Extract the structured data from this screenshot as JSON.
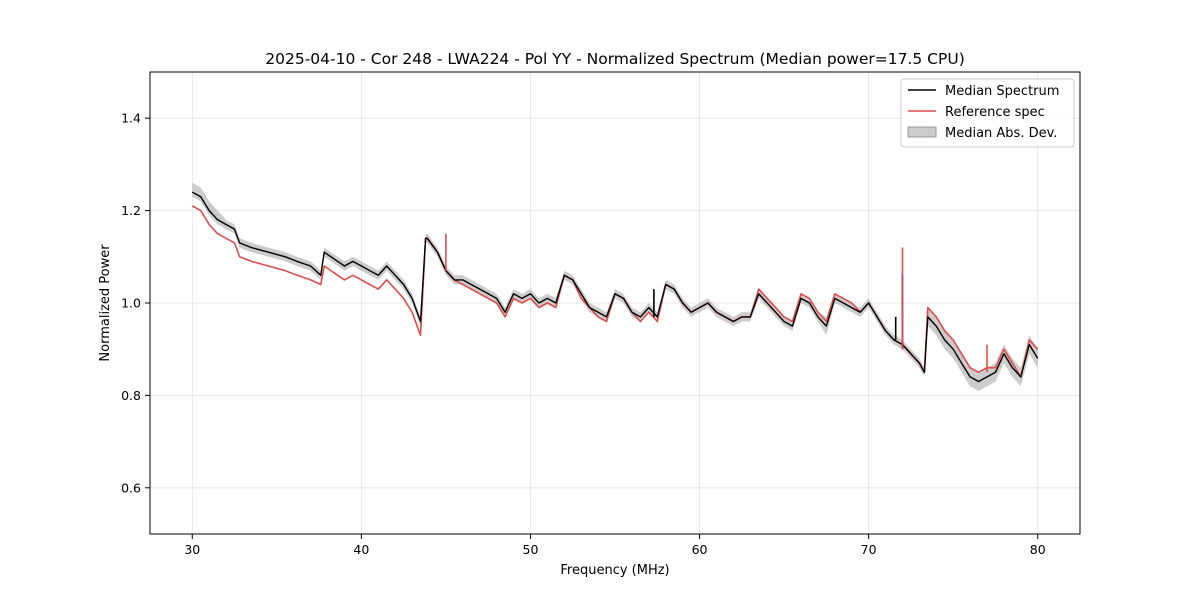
{
  "chart_data": {
    "type": "line",
    "title": "2025-04-10 - Cor 248 - LWA224 - Pol YY - Normalized Spectrum (Median power=17.5 CPU)",
    "xlabel": "Frequency (MHz)",
    "ylabel": "Normalized Power",
    "xlim": [
      27.5,
      82.5
    ],
    "ylim": [
      0.5,
      1.5
    ],
    "xticks": [
      30,
      40,
      50,
      60,
      70,
      80
    ],
    "yticks": [
      0.6,
      0.8,
      1.0,
      1.2,
      1.4
    ],
    "grid": true,
    "legend_position": "top-right",
    "legend": [
      "Median Spectrum",
      "Reference spec",
      "Median Abs. Dev."
    ],
    "colors": {
      "median": "#000000",
      "reference": "#e04c4c",
      "mad_fill": "#999999"
    },
    "x": [
      30.0,
      30.5,
      31.0,
      31.5,
      32.0,
      32.5,
      32.8,
      33.5,
      34.5,
      35.5,
      36.2,
      37.0,
      37.6,
      37.8,
      38.6,
      39.0,
      39.5,
      40.0,
      40.5,
      41.0,
      41.5,
      42.0,
      42.5,
      43.0,
      43.5,
      43.8,
      43.9,
      44.5,
      45.0,
      45.5,
      46.0,
      47.0,
      48.0,
      48.5,
      49.0,
      49.5,
      50.0,
      50.5,
      51.0,
      51.5,
      52.0,
      52.5,
      53.0,
      53.5,
      54.0,
      54.5,
      55.0,
      55.5,
      56.0,
      56.5,
      57.0,
      57.5,
      58.0,
      58.5,
      59.0,
      59.5,
      60.0,
      60.5,
      61.0,
      61.5,
      62.0,
      62.5,
      63.0,
      63.5,
      64.0,
      64.5,
      65.0,
      65.5,
      66.0,
      66.5,
      67.0,
      67.5,
      68.0,
      68.5,
      69.0,
      69.5,
      70.0,
      70.5,
      71.0,
      71.5,
      72.0,
      72.5,
      73.0,
      73.3,
      73.5,
      74.0,
      74.5,
      75.0,
      75.5,
      76.0,
      76.5,
      77.0,
      77.5,
      78.0,
      78.5,
      79.0,
      79.5,
      80.0
    ],
    "series": [
      {
        "name": "Median Spectrum",
        "values": [
          1.24,
          1.23,
          1.2,
          1.18,
          1.17,
          1.16,
          1.13,
          1.12,
          1.11,
          1.1,
          1.09,
          1.08,
          1.06,
          1.11,
          1.09,
          1.08,
          1.09,
          1.08,
          1.07,
          1.06,
          1.08,
          1.06,
          1.04,
          1.01,
          0.96,
          1.14,
          1.14,
          1.11,
          1.07,
          1.05,
          1.05,
          1.03,
          1.01,
          0.98,
          1.02,
          1.01,
          1.02,
          1.0,
          1.01,
          1.0,
          1.06,
          1.05,
          1.02,
          0.99,
          0.98,
          0.97,
          1.02,
          1.01,
          0.98,
          0.97,
          0.99,
          0.97,
          1.04,
          1.03,
          1.0,
          0.98,
          0.99,
          1.0,
          0.98,
          0.97,
          0.96,
          0.97,
          0.97,
          1.02,
          1.0,
          0.98,
          0.96,
          0.95,
          1.01,
          1.0,
          0.97,
          0.95,
          1.01,
          1.0,
          0.99,
          0.98,
          1.0,
          0.97,
          0.94,
          0.92,
          0.91,
          0.89,
          0.87,
          0.85,
          0.97,
          0.95,
          0.92,
          0.9,
          0.87,
          0.84,
          0.83,
          0.84,
          0.85,
          0.89,
          0.86,
          0.84,
          0.91,
          0.88
        ]
      },
      {
        "name": "Reference spec",
        "values": [
          1.21,
          1.2,
          1.17,
          1.15,
          1.14,
          1.13,
          1.1,
          1.09,
          1.08,
          1.07,
          1.06,
          1.05,
          1.04,
          1.08,
          1.06,
          1.05,
          1.06,
          1.05,
          1.04,
          1.03,
          1.05,
          1.03,
          1.01,
          0.98,
          0.93,
          1.14,
          1.14,
          1.11,
          1.07,
          1.05,
          1.04,
          1.02,
          1.0,
          0.97,
          1.01,
          1.0,
          1.01,
          0.99,
          1.0,
          0.99,
          1.06,
          1.05,
          1.01,
          0.99,
          0.97,
          0.96,
          1.02,
          1.01,
          0.98,
          0.96,
          0.98,
          0.96,
          1.04,
          1.03,
          1.0,
          0.98,
          0.99,
          1.0,
          0.98,
          0.97,
          0.96,
          0.97,
          0.97,
          1.03,
          1.01,
          0.99,
          0.97,
          0.96,
          1.02,
          1.01,
          0.98,
          0.96,
          1.02,
          1.01,
          1.0,
          0.98,
          1.0,
          0.97,
          0.94,
          0.92,
          0.91,
          0.89,
          0.87,
          0.85,
          0.99,
          0.97,
          0.94,
          0.92,
          0.89,
          0.86,
          0.85,
          0.86,
          0.86,
          0.9,
          0.87,
          0.84,
          0.92,
          0.9
        ]
      }
    ],
    "mad_band": {
      "name": "Median Abs. Dev.",
      "lower": [
        1.23,
        1.22,
        1.19,
        1.17,
        1.16,
        1.15,
        1.12,
        1.11,
        1.1,
        1.09,
        1.08,
        1.07,
        1.05,
        1.1,
        1.08,
        1.07,
        1.08,
        1.07,
        1.06,
        1.05,
        1.07,
        1.05,
        1.03,
        1.0,
        0.95,
        1.13,
        1.13,
        1.1,
        1.06,
        1.04,
        1.04,
        1.02,
        1.0,
        0.97,
        1.01,
        1.0,
        1.01,
        0.99,
        1.0,
        0.99,
        1.05,
        1.04,
        1.01,
        0.98,
        0.97,
        0.96,
        1.01,
        1.0,
        0.97,
        0.96,
        0.98,
        0.96,
        1.03,
        1.02,
        0.99,
        0.97,
        0.98,
        0.99,
        0.97,
        0.96,
        0.95,
        0.96,
        0.96,
        1.01,
        0.99,
        0.97,
        0.95,
        0.94,
        1.0,
        0.99,
        0.96,
        0.93,
        1.0,
        0.99,
        0.98,
        0.97,
        0.99,
        0.96,
        0.93,
        0.91,
        0.9,
        0.88,
        0.86,
        0.84,
        0.95,
        0.93,
        0.9,
        0.88,
        0.85,
        0.82,
        0.81,
        0.82,
        0.83,
        0.87,
        0.84,
        0.82,
        0.89,
        0.86
      ],
      "upper": [
        1.26,
        1.25,
        1.22,
        1.2,
        1.18,
        1.17,
        1.14,
        1.13,
        1.12,
        1.11,
        1.1,
        1.09,
        1.07,
        1.12,
        1.1,
        1.09,
        1.1,
        1.09,
        1.08,
        1.07,
        1.09,
        1.07,
        1.05,
        1.02,
        0.97,
        1.15,
        1.15,
        1.12,
        1.08,
        1.06,
        1.06,
        1.04,
        1.02,
        0.99,
        1.03,
        1.02,
        1.03,
        1.01,
        1.02,
        1.01,
        1.07,
        1.06,
        1.03,
        1.0,
        0.99,
        0.98,
        1.03,
        1.02,
        0.99,
        0.98,
        1.0,
        0.98,
        1.05,
        1.04,
        1.01,
        0.99,
        1.0,
        1.01,
        0.99,
        0.98,
        0.97,
        0.98,
        0.98,
        1.03,
        1.01,
        0.99,
        0.97,
        0.96,
        1.02,
        1.01,
        0.98,
        0.97,
        1.02,
        1.01,
        1.0,
        0.99,
        1.01,
        0.98,
        0.95,
        0.93,
        0.92,
        0.9,
        0.88,
        0.86,
        0.99,
        0.97,
        0.94,
        0.92,
        0.89,
        0.86,
        0.85,
        0.86,
        0.87,
        0.91,
        0.88,
        0.86,
        0.93,
        0.9
      ]
    },
    "spikes": [
      {
        "series": "Median Spectrum",
        "x": 57.3,
        "y0": 0.97,
        "y1": 1.03
      },
      {
        "series": "Median Spectrum",
        "x": 71.6,
        "y0": 0.92,
        "y1": 0.97
      },
      {
        "series": "Median Spectrum",
        "x": 72.0,
        "y0": 0.9,
        "y1": 1.06
      },
      {
        "series": "Reference spec",
        "x": 72.0,
        "y0": 0.9,
        "y1": 1.12
      },
      {
        "series": "Reference spec",
        "x": 45.0,
        "y0": 1.07,
        "y1": 1.15
      },
      {
        "series": "Reference spec",
        "x": 77.0,
        "y0": 0.85,
        "y1": 0.91
      }
    ]
  }
}
